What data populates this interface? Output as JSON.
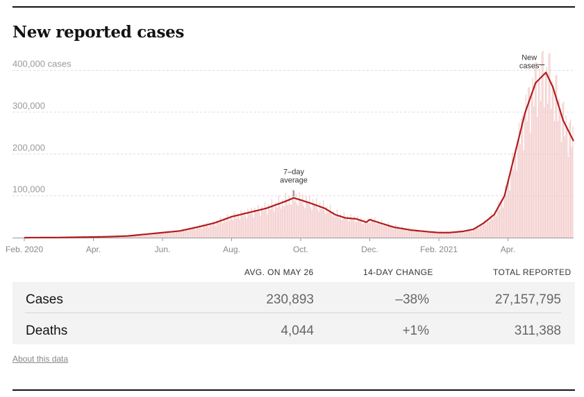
{
  "title": "New reported cases",
  "chart_data": {
    "type": "bar",
    "title": "New reported cases",
    "y_unit_label": "cases",
    "ylim": [
      0,
      410000
    ],
    "yticks": [
      100000,
      200000,
      300000,
      400000
    ],
    "ytick_labels": [
      "100,000",
      "200,000",
      "300,000",
      "400,000 cases"
    ],
    "xlim_months": [
      0,
      15.9
    ],
    "xticks": [
      {
        "label": "Feb. 2020",
        "month": 0
      },
      {
        "label": "Apr.",
        "month": 2
      },
      {
        "label": "Jun.",
        "month": 4
      },
      {
        "label": "Aug.",
        "month": 6
      },
      {
        "label": "Oct.",
        "month": 8
      },
      {
        "label": "Dec.",
        "month": 10
      },
      {
        "label": "Feb. 2021",
        "month": 12
      },
      {
        "label": "Apr.",
        "month": 14
      }
    ],
    "series": [
      {
        "name": "7-day average",
        "color": "#b01c1c",
        "points": [
          {
            "month": 0,
            "value": 0
          },
          {
            "month": 1,
            "value": 300
          },
          {
            "month": 1.5,
            "value": 1000
          },
          {
            "month": 2,
            "value": 1500
          },
          {
            "month": 2.5,
            "value": 2500
          },
          {
            "month": 3,
            "value": 4000
          },
          {
            "month": 3.5,
            "value": 8000
          },
          {
            "month": 4,
            "value": 12000
          },
          {
            "month": 4.5,
            "value": 16000
          },
          {
            "month": 5,
            "value": 25000
          },
          {
            "month": 5.5,
            "value": 35000
          },
          {
            "month": 6,
            "value": 50000
          },
          {
            "month": 6.5,
            "value": 60000
          },
          {
            "month": 7,
            "value": 70000
          },
          {
            "month": 7.5,
            "value": 85000
          },
          {
            "month": 7.8,
            "value": 95000
          },
          {
            "month": 8,
            "value": 90000
          },
          {
            "month": 8.3,
            "value": 82000
          },
          {
            "month": 8.7,
            "value": 70000
          },
          {
            "month": 9,
            "value": 55000
          },
          {
            "month": 9.3,
            "value": 47000
          },
          {
            "month": 9.6,
            "value": 45000
          },
          {
            "month": 9.9,
            "value": 37000
          },
          {
            "month": 10,
            "value": 43000
          },
          {
            "month": 10.3,
            "value": 35000
          },
          {
            "month": 10.7,
            "value": 25000
          },
          {
            "month": 11.2,
            "value": 18000
          },
          {
            "month": 11.7,
            "value": 14000
          },
          {
            "month": 12,
            "value": 12000
          },
          {
            "month": 12.3,
            "value": 12000
          },
          {
            "month": 12.7,
            "value": 15000
          },
          {
            "month": 13,
            "value": 20000
          },
          {
            "month": 13.3,
            "value": 35000
          },
          {
            "month": 13.6,
            "value": 55000
          },
          {
            "month": 13.9,
            "value": 100000
          },
          {
            "month": 14.2,
            "value": 200000
          },
          {
            "month": 14.5,
            "value": 300000
          },
          {
            "month": 14.8,
            "value": 370000
          },
          {
            "month": 15.1,
            "value": 395000
          },
          {
            "month": 15.3,
            "value": 360000
          },
          {
            "month": 15.6,
            "value": 280000
          },
          {
            "month": 15.9,
            "value": 230893
          }
        ]
      }
    ],
    "daily_bars_color": "#f2c7c7",
    "annotations": [
      {
        "text": [
          "7–day",
          "average"
        ],
        "month": 7.8,
        "value": 95000
      },
      {
        "text": [
          "New",
          "cases"
        ],
        "month": 15.1,
        "value": 395000
      }
    ]
  },
  "stats": {
    "headers": [
      "AVG. ON MAY 26",
      "14-DAY CHANGE",
      "TOTAL REPORTED"
    ],
    "rows": [
      {
        "label": "Cases",
        "avg": "230,893",
        "change": "–38%",
        "total": "27,157,795"
      },
      {
        "label": "Deaths",
        "avg": "4,044",
        "change": "+1%",
        "total": "311,388"
      }
    ]
  },
  "about_link": "About this data"
}
